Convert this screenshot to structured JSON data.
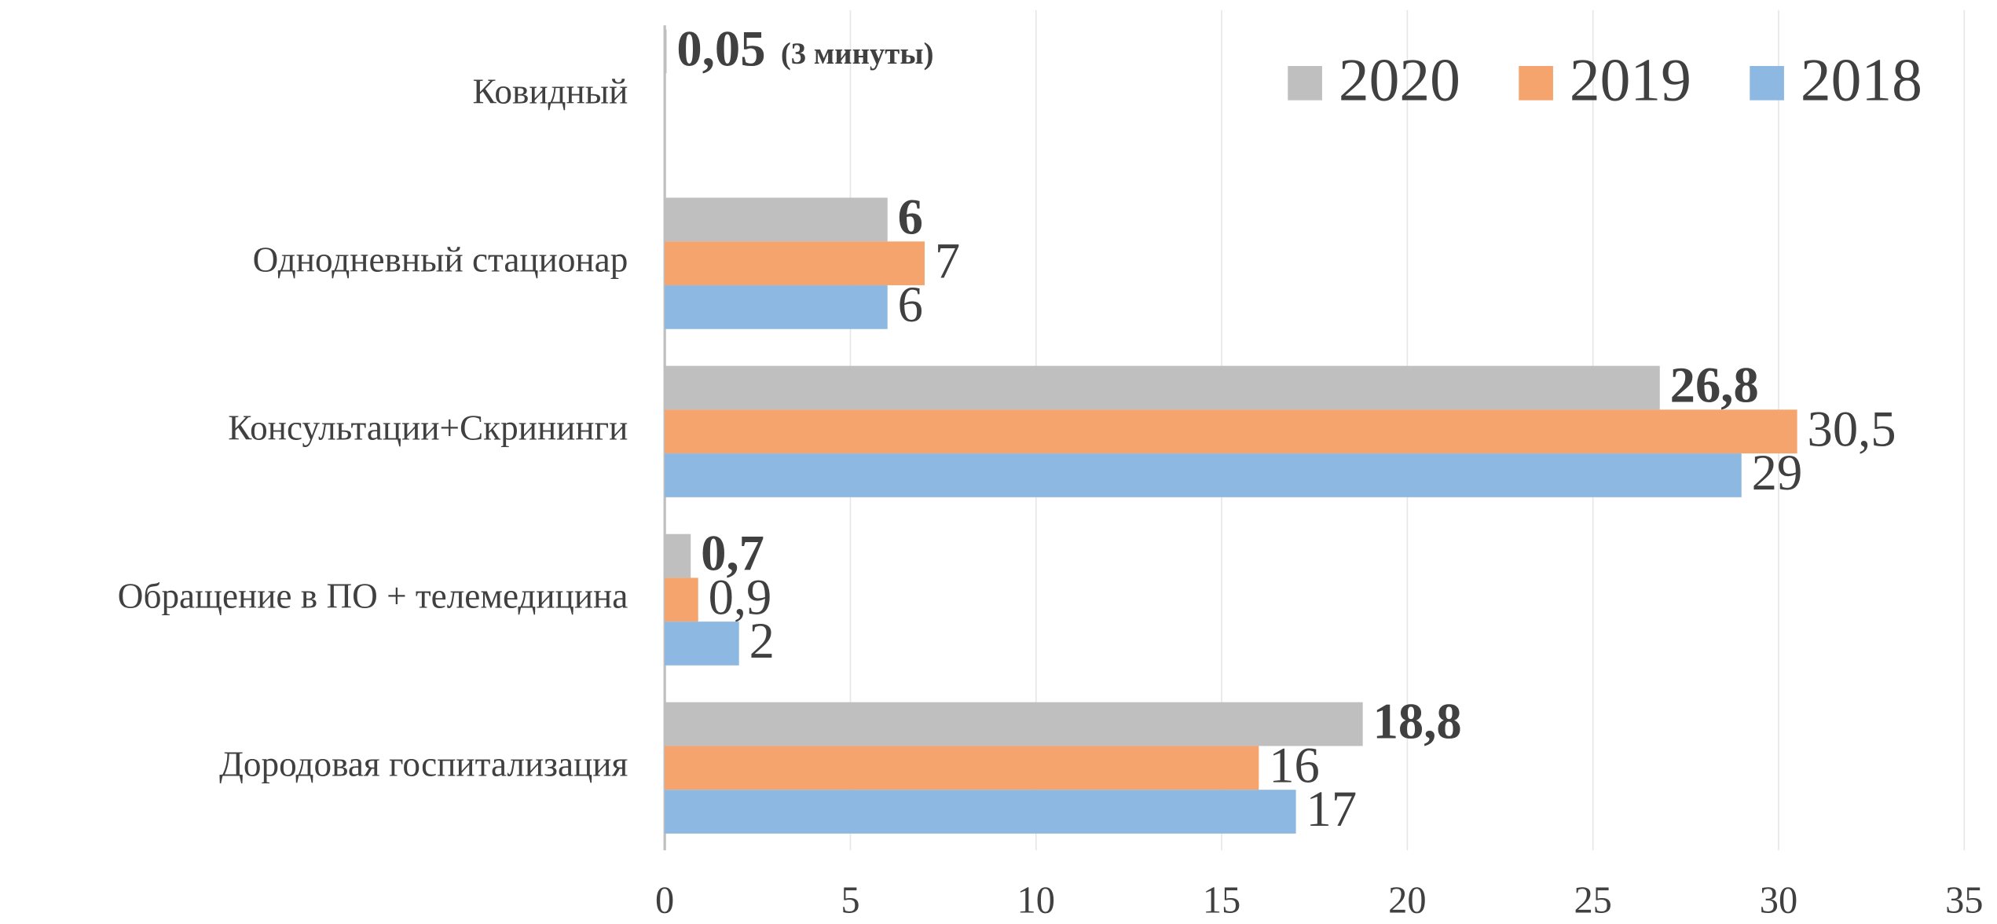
{
  "chart_data": {
    "type": "bar",
    "orientation": "horizontal",
    "categories": [
      "Ковидный",
      "Однодневный стационар",
      "Консультации+Скрининги",
      "Обращение в ПО + телемедицина",
      "Дородовая госпитализация"
    ],
    "series": [
      {
        "name": "2020",
        "color": "#bfbfbf",
        "values": [
          0.05,
          6,
          26.8,
          0.7,
          18.8
        ],
        "value_labels": [
          "0,05",
          "6",
          "26,8",
          "0,7",
          "18,8"
        ]
      },
      {
        "name": "2019",
        "color": "#f4a46c",
        "values": [
          null,
          7,
          30.5,
          0.9,
          16
        ],
        "value_labels": [
          null,
          "7",
          "30,5",
          "0,9",
          "16"
        ]
      },
      {
        "name": "2018",
        "color": "#8db8e2",
        "values": [
          null,
          6,
          29,
          2,
          17
        ],
        "value_labels": [
          null,
          "6",
          "29",
          "2",
          "17"
        ]
      }
    ],
    "annotations": [
      "(3 минуты)"
    ],
    "xlim": [
      0,
      35
    ],
    "xticks": [
      0,
      5,
      10,
      15,
      20,
      25,
      30,
      35
    ],
    "grid": true,
    "legend": "upper right"
  }
}
